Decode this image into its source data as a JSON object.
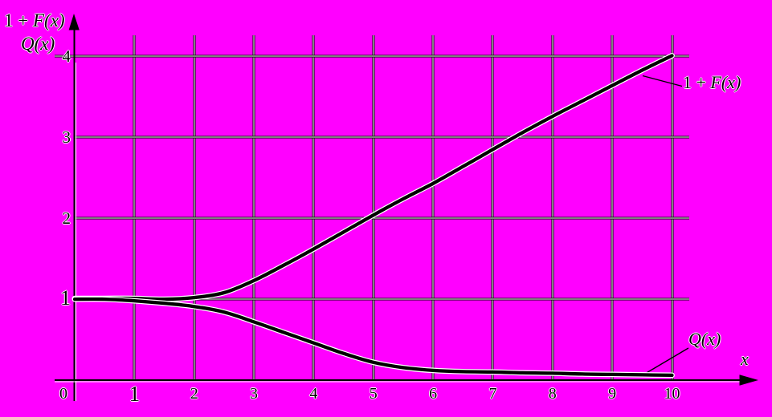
{
  "chart_data": {
    "type": "line",
    "title": "",
    "xlabel": "x",
    "ylabel_lines": [
      "1 + F(x)",
      "Q(x)"
    ],
    "x_tick_labels": [
      "0",
      "1",
      "2",
      "3",
      "4",
      "5",
      "6",
      "7",
      "8",
      "9",
      "10"
    ],
    "x_tick_values": [
      0,
      1,
      2,
      3,
      4,
      5,
      6,
      7,
      8,
      9,
      10
    ],
    "y_tick_labels": [
      "1",
      "2",
      "3",
      "4"
    ],
    "y_tick_values": [
      1,
      2,
      3,
      4
    ],
    "xlim": [
      0,
      10
    ],
    "ylim": [
      0,
      4
    ],
    "grid": true,
    "legend_position": "annotated-on-plot",
    "background_color": "#FF00FF",
    "line_color": "#000000",
    "grid_color": "#000000",
    "grid_highlight_color": "#FFFFFF",
    "x": [
      0,
      0.5,
      1,
      1.5,
      2,
      2.5,
      3,
      3.5,
      4,
      4.5,
      5,
      5.5,
      6,
      6.5,
      7,
      7.5,
      8,
      8.5,
      9,
      9.5,
      10
    ],
    "series": [
      {
        "name": "1 + F(x)",
        "values": [
          1.01,
          1.01,
          1.01,
          1.0,
          1.02,
          1.08,
          1.23,
          1.42,
          1.62,
          1.83,
          2.04,
          2.24,
          2.43,
          2.64,
          2.85,
          3.06,
          3.26,
          3.45,
          3.64,
          3.83,
          4.01
        ]
      },
      {
        "name": "Q(x)",
        "values": [
          1.0,
          1.0,
          0.98,
          0.95,
          0.91,
          0.84,
          0.72,
          0.59,
          0.46,
          0.33,
          0.22,
          0.155,
          0.12,
          0.105,
          0.1,
          0.09,
          0.085,
          0.075,
          0.07,
          0.065,
          0.06
        ]
      }
    ]
  },
  "labels": {
    "y_axis_title": {
      "prefix": "1 + ",
      "func": "F(x)"
    },
    "y_axis_title2": "Q(x)",
    "curve1": {
      "prefix": "1 + ",
      "func": "F(x)"
    },
    "curve2": "Q(x)",
    "x_axis": "x"
  }
}
